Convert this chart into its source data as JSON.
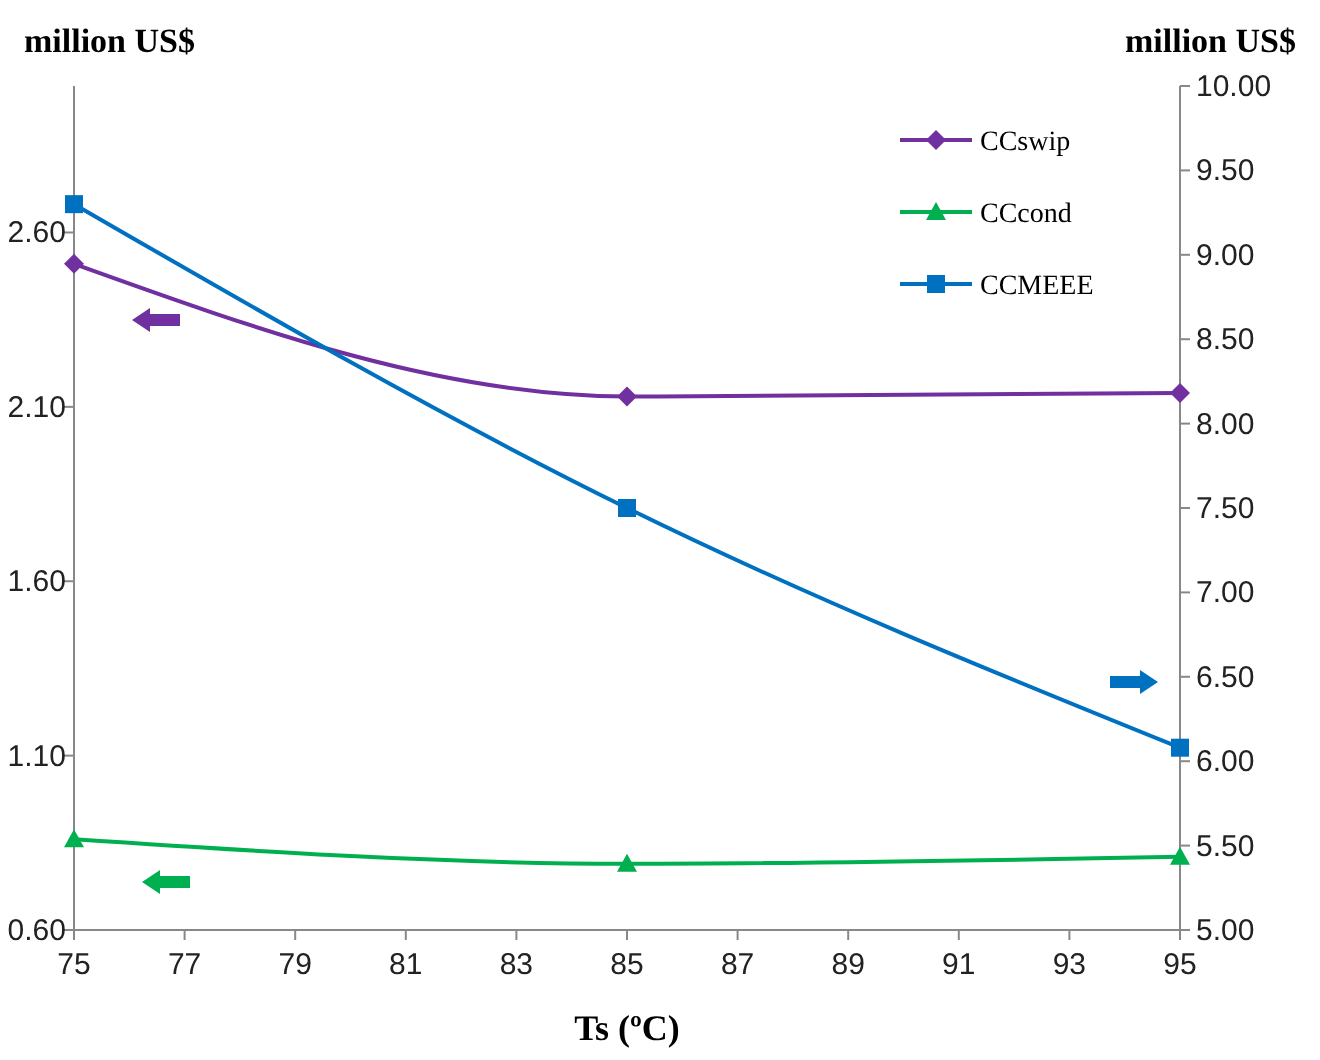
{
  "chart_data": {
    "type": "line",
    "ylabel": "million US$",
    "y2label": "million US$",
    "xlabel": "Ts (ºC)",
    "x": [
      75,
      85,
      95
    ],
    "xlim": [
      75,
      95
    ],
    "xticks": [
      75,
      77,
      79,
      81,
      83,
      85,
      87,
      89,
      91,
      93,
      95
    ],
    "ylim": [
      0.6,
      3.02
    ],
    "yticks": [
      {
        "value": 0.6,
        "label": "0.60"
      },
      {
        "value": 1.1,
        "label": "1.10"
      },
      {
        "value": 1.6,
        "label": "1.60"
      },
      {
        "value": 2.1,
        "label": "2.10"
      },
      {
        "value": 2.6,
        "label": "2.60"
      }
    ],
    "y2lim": [
      5,
      10
    ],
    "y2ticks": [
      {
        "value": 5,
        "label": "5.00"
      },
      {
        "value": 5.5,
        "label": "5.50"
      },
      {
        "value": 6,
        "label": "6.00"
      },
      {
        "value": 6.5,
        "label": "6.50"
      },
      {
        "value": 7,
        "label": "7.00"
      },
      {
        "value": 7.5,
        "label": "7.50"
      },
      {
        "value": 8,
        "label": "8.00"
      },
      {
        "value": 8.5,
        "label": "8.50"
      },
      {
        "value": 9,
        "label": "9.00"
      },
      {
        "value": 9.5,
        "label": "9.50"
      },
      {
        "value": 10,
        "label": "10.00"
      }
    ],
    "grid": false,
    "legend": "top right",
    "series": [
      {
        "name": "CCswip",
        "color": "#7030a0",
        "marker": "diamond",
        "values": [
          2.51,
          2.13,
          2.14
        ]
      },
      {
        "name": "CCcond",
        "color": "#00b050",
        "marker": "triangle",
        "values": [
          0.86,
          0.79,
          0.81
        ]
      },
      {
        "name": "CCMEEE",
        "color": "#0070c0",
        "marker": "square",
        "axis": "y2",
        "values": [
          9.3,
          7.5,
          6.08
        ]
      }
    ]
  }
}
